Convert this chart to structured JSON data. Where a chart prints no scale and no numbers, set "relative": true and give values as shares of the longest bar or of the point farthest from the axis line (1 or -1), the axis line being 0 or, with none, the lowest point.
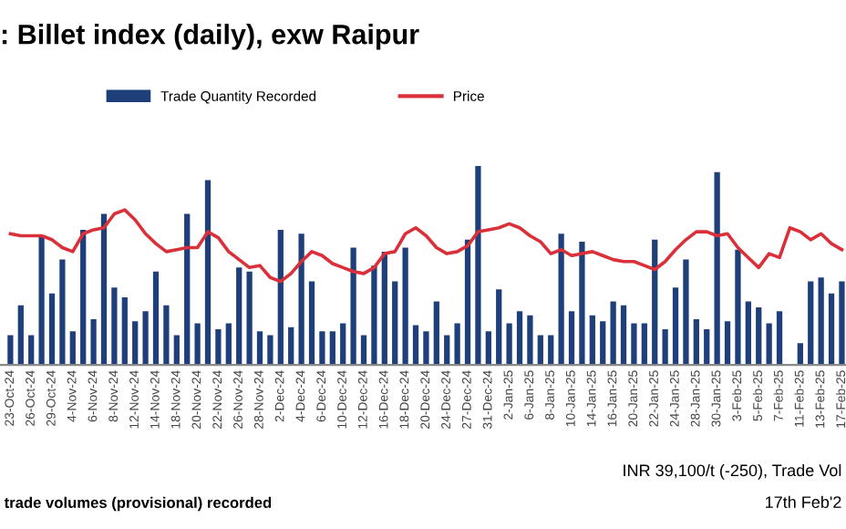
{
  "chart_data": {
    "type": "bar",
    "title": ": Billet index (daily), exw Raipur",
    "relative": true,
    "legend": "top",
    "categories": [
      "23-Oct-24",
      null,
      "26-Oct-24",
      null,
      "29-Oct-24",
      null,
      "4-Nov-24",
      null,
      "6-Nov-24",
      null,
      "8-Nov-24",
      null,
      "12-Nov-24",
      null,
      "14-Nov-24",
      null,
      "18-Nov-24",
      null,
      "20-Nov-24",
      null,
      "22-Nov-24",
      null,
      "26-Nov-24",
      null,
      "28-Nov-24",
      null,
      "2-Dec-24",
      null,
      "4-Dec-24",
      null,
      "6-Dec-24",
      null,
      "10-Dec-24",
      null,
      "12-Dec-24",
      null,
      "16-Dec-24",
      null,
      "18-Dec-24",
      null,
      "20-Dec-24",
      null,
      "24-Dec-24",
      null,
      "27-Dec-24",
      null,
      "31-Dec-24",
      null,
      "2-Jan-25",
      null,
      "6-Jan-25",
      null,
      "8-Jan-25",
      null,
      "10-Jan-25",
      null,
      "14-Jan-25",
      null,
      "16-Jan-25",
      null,
      "20-Jan-25",
      null,
      "22-Jan-25",
      null,
      "24-Jan-25",
      null,
      "28-Jan-25",
      null,
      "30-Jan-25",
      null,
      "3-Feb-25",
      null,
      "5-Feb-25",
      null,
      "7-Feb-25",
      null,
      "11-Feb-25",
      null,
      "13-Feb-25",
      null,
      "17-Feb-25"
    ],
    "series": [
      {
        "name": "Trade Quantity Recorded",
        "color": "#1f3f7a",
        "values": [
          0.15,
          0.3,
          0.15,
          0.65,
          0.36,
          0.53,
          0.17,
          0.68,
          0.23,
          0.76,
          0.39,
          0.34,
          0.22,
          0.27,
          0.47,
          0.3,
          0.15,
          0.76,
          0.21,
          0.93,
          0.18,
          0.21,
          0.49,
          0.47,
          0.17,
          0.15,
          0.68,
          0.19,
          0.66,
          0.42,
          0.17,
          0.17,
          0.21,
          0.59,
          0.15,
          0.5,
          0.57,
          0.42,
          0.59,
          0.2,
          0.17,
          0.32,
          0.15,
          0.21,
          0.63,
          1.0,
          0.17,
          0.38,
          0.21,
          0.27,
          0.25,
          0.15,
          0.15,
          0.66,
          0.27,
          0.62,
          0.25,
          0.22,
          0.32,
          0.3,
          0.21,
          0.21,
          0.63,
          0.18,
          0.39,
          0.53,
          0.23,
          0.18,
          0.97,
          0.22,
          0.58,
          0.32,
          0.29,
          0.21,
          0.27,
          null,
          0.11,
          0.42,
          0.44,
          0.36,
          0.42
        ]
      },
      {
        "name": "Price",
        "type": "line",
        "color": "#d9303a",
        "values": [
          0.66,
          0.65,
          0.65,
          0.65,
          0.63,
          0.59,
          0.57,
          0.66,
          0.68,
          0.69,
          0.76,
          0.78,
          0.73,
          0.66,
          0.61,
          0.57,
          0.58,
          0.59,
          0.59,
          0.67,
          0.64,
          0.57,
          0.53,
          0.49,
          0.5,
          0.44,
          0.42,
          0.46,
          0.52,
          0.57,
          0.55,
          0.51,
          0.49,
          0.47,
          0.46,
          0.49,
          0.56,
          0.57,
          0.66,
          0.69,
          0.65,
          0.59,
          0.56,
          0.57,
          0.6,
          0.67,
          0.68,
          0.69,
          0.71,
          0.69,
          0.65,
          0.62,
          0.56,
          0.58,
          0.55,
          0.56,
          0.57,
          0.55,
          0.53,
          0.52,
          0.52,
          0.5,
          0.48,
          0.52,
          0.58,
          0.63,
          0.67,
          0.67,
          0.65,
          0.66,
          0.59,
          0.54,
          0.49,
          0.56,
          0.54,
          0.69,
          0.67,
          0.63,
          0.66,
          0.61,
          0.58
        ]
      }
    ],
    "annotations": [
      "trade volumes (provisional) recorded",
      "INR 39,100/t (-250), Trade Vol",
      "17th Feb'2"
    ]
  }
}
